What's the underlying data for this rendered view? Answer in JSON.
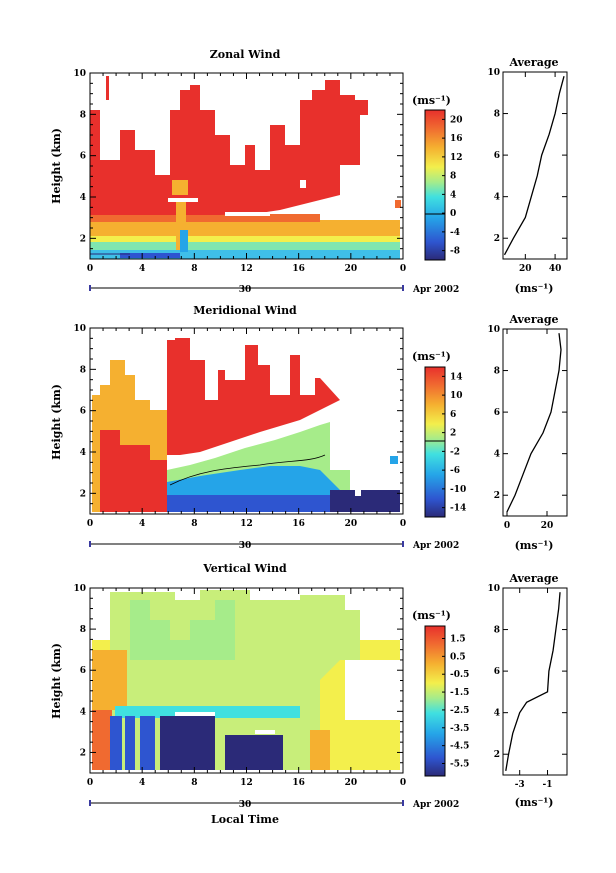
{
  "figure": {
    "xlabel": "Local Time",
    "date_label": "Apr 2002",
    "day_label": "30",
    "height_label": "Height (km)"
  },
  "chart_data": [
    {
      "type": "heatmap",
      "title": "Zonal Wind",
      "ylabel": "Height (km)",
      "xlabel": "",
      "xlim": [
        0,
        24
      ],
      "ylim": [
        1,
        10
      ],
      "x_ticks": [
        "0",
        "4",
        "8",
        "12",
        "16",
        "20",
        "0"
      ],
      "y_ticks": [
        "2",
        "4",
        "6",
        "8",
        "10"
      ],
      "colorbar": {
        "label": "(ms⁻¹)",
        "ticks": [
          "20",
          "16",
          "12",
          "8",
          "4",
          "0",
          "-4",
          "-8"
        ],
        "range": [
          -10,
          22
        ],
        "contour": 0
      },
      "profile_title": "Average",
      "profile_xunits": "(ms⁻¹)",
      "profile_xticks": [
        "20",
        "40"
      ],
      "profile_xlim": [
        5,
        48
      ],
      "profile": {
        "height": [
          1.2,
          2,
          3,
          4,
          5,
          6,
          7,
          8,
          9,
          9.8
        ],
        "value": [
          6,
          12,
          20,
          24,
          28,
          31,
          36,
          40,
          43,
          46
        ]
      }
    },
    {
      "type": "heatmap",
      "title": "Meridional Wind",
      "ylabel": "Height (km)",
      "xlabel": "",
      "xlim": [
        0,
        24
      ],
      "ylim": [
        1,
        10
      ],
      "x_ticks": [
        "0",
        "4",
        "8",
        "12",
        "16",
        "20",
        "0"
      ],
      "y_ticks": [
        "2",
        "4",
        "6",
        "8",
        "10"
      ],
      "colorbar": {
        "label": "(ms⁻¹)",
        "ticks": [
          "14",
          "10",
          "6",
          "2",
          "-2",
          "-6",
          "-10",
          "-14"
        ],
        "range": [
          -16,
          16
        ],
        "contour": 0
      },
      "profile_title": "Average",
      "profile_xunits": "(ms⁻¹)",
      "profile_xticks": [
        "0",
        "20"
      ],
      "profile_xlim": [
        -2,
        30
      ],
      "profile": {
        "height": [
          1.2,
          2,
          3,
          4,
          5,
          6,
          7,
          8,
          9,
          9.8
        ],
        "value": [
          0,
          4,
          8,
          12,
          18,
          22,
          24,
          26,
          27,
          26
        ]
      }
    },
    {
      "type": "heatmap",
      "title": "Vertical Wind",
      "ylabel": "Height (km)",
      "xlabel": "Local Time",
      "xlim": [
        0,
        24
      ],
      "ylim": [
        1,
        10
      ],
      "x_ticks": [
        "0",
        "4",
        "8",
        "12",
        "16",
        "20",
        "0"
      ],
      "y_ticks": [
        "2",
        "4",
        "6",
        "8",
        "10"
      ],
      "colorbar": {
        "label": "(ms⁻¹)",
        "ticks": [
          "1.5",
          "0.5",
          "-0.5",
          "-1.5",
          "-2.5",
          "-3.5",
          "-4.5",
          "-5.5"
        ],
        "range": [
          -6.2,
          2.2
        ]
      },
      "profile_title": "Average",
      "profile_xunits": "(ms⁻¹)",
      "profile_xticks": [
        "-3",
        "-1"
      ],
      "profile_xlim": [
        -4.2,
        0.4
      ],
      "profile": {
        "height": [
          1.2,
          2,
          3,
          4,
          4.5,
          5,
          6,
          7,
          8,
          9,
          9.8
        ],
        "value": [
          -4,
          -3.8,
          -3.5,
          -3.0,
          -2.5,
          -1.0,
          -0.9,
          -0.6,
          -0.4,
          -0.2,
          -0.1
        ]
      }
    }
  ]
}
